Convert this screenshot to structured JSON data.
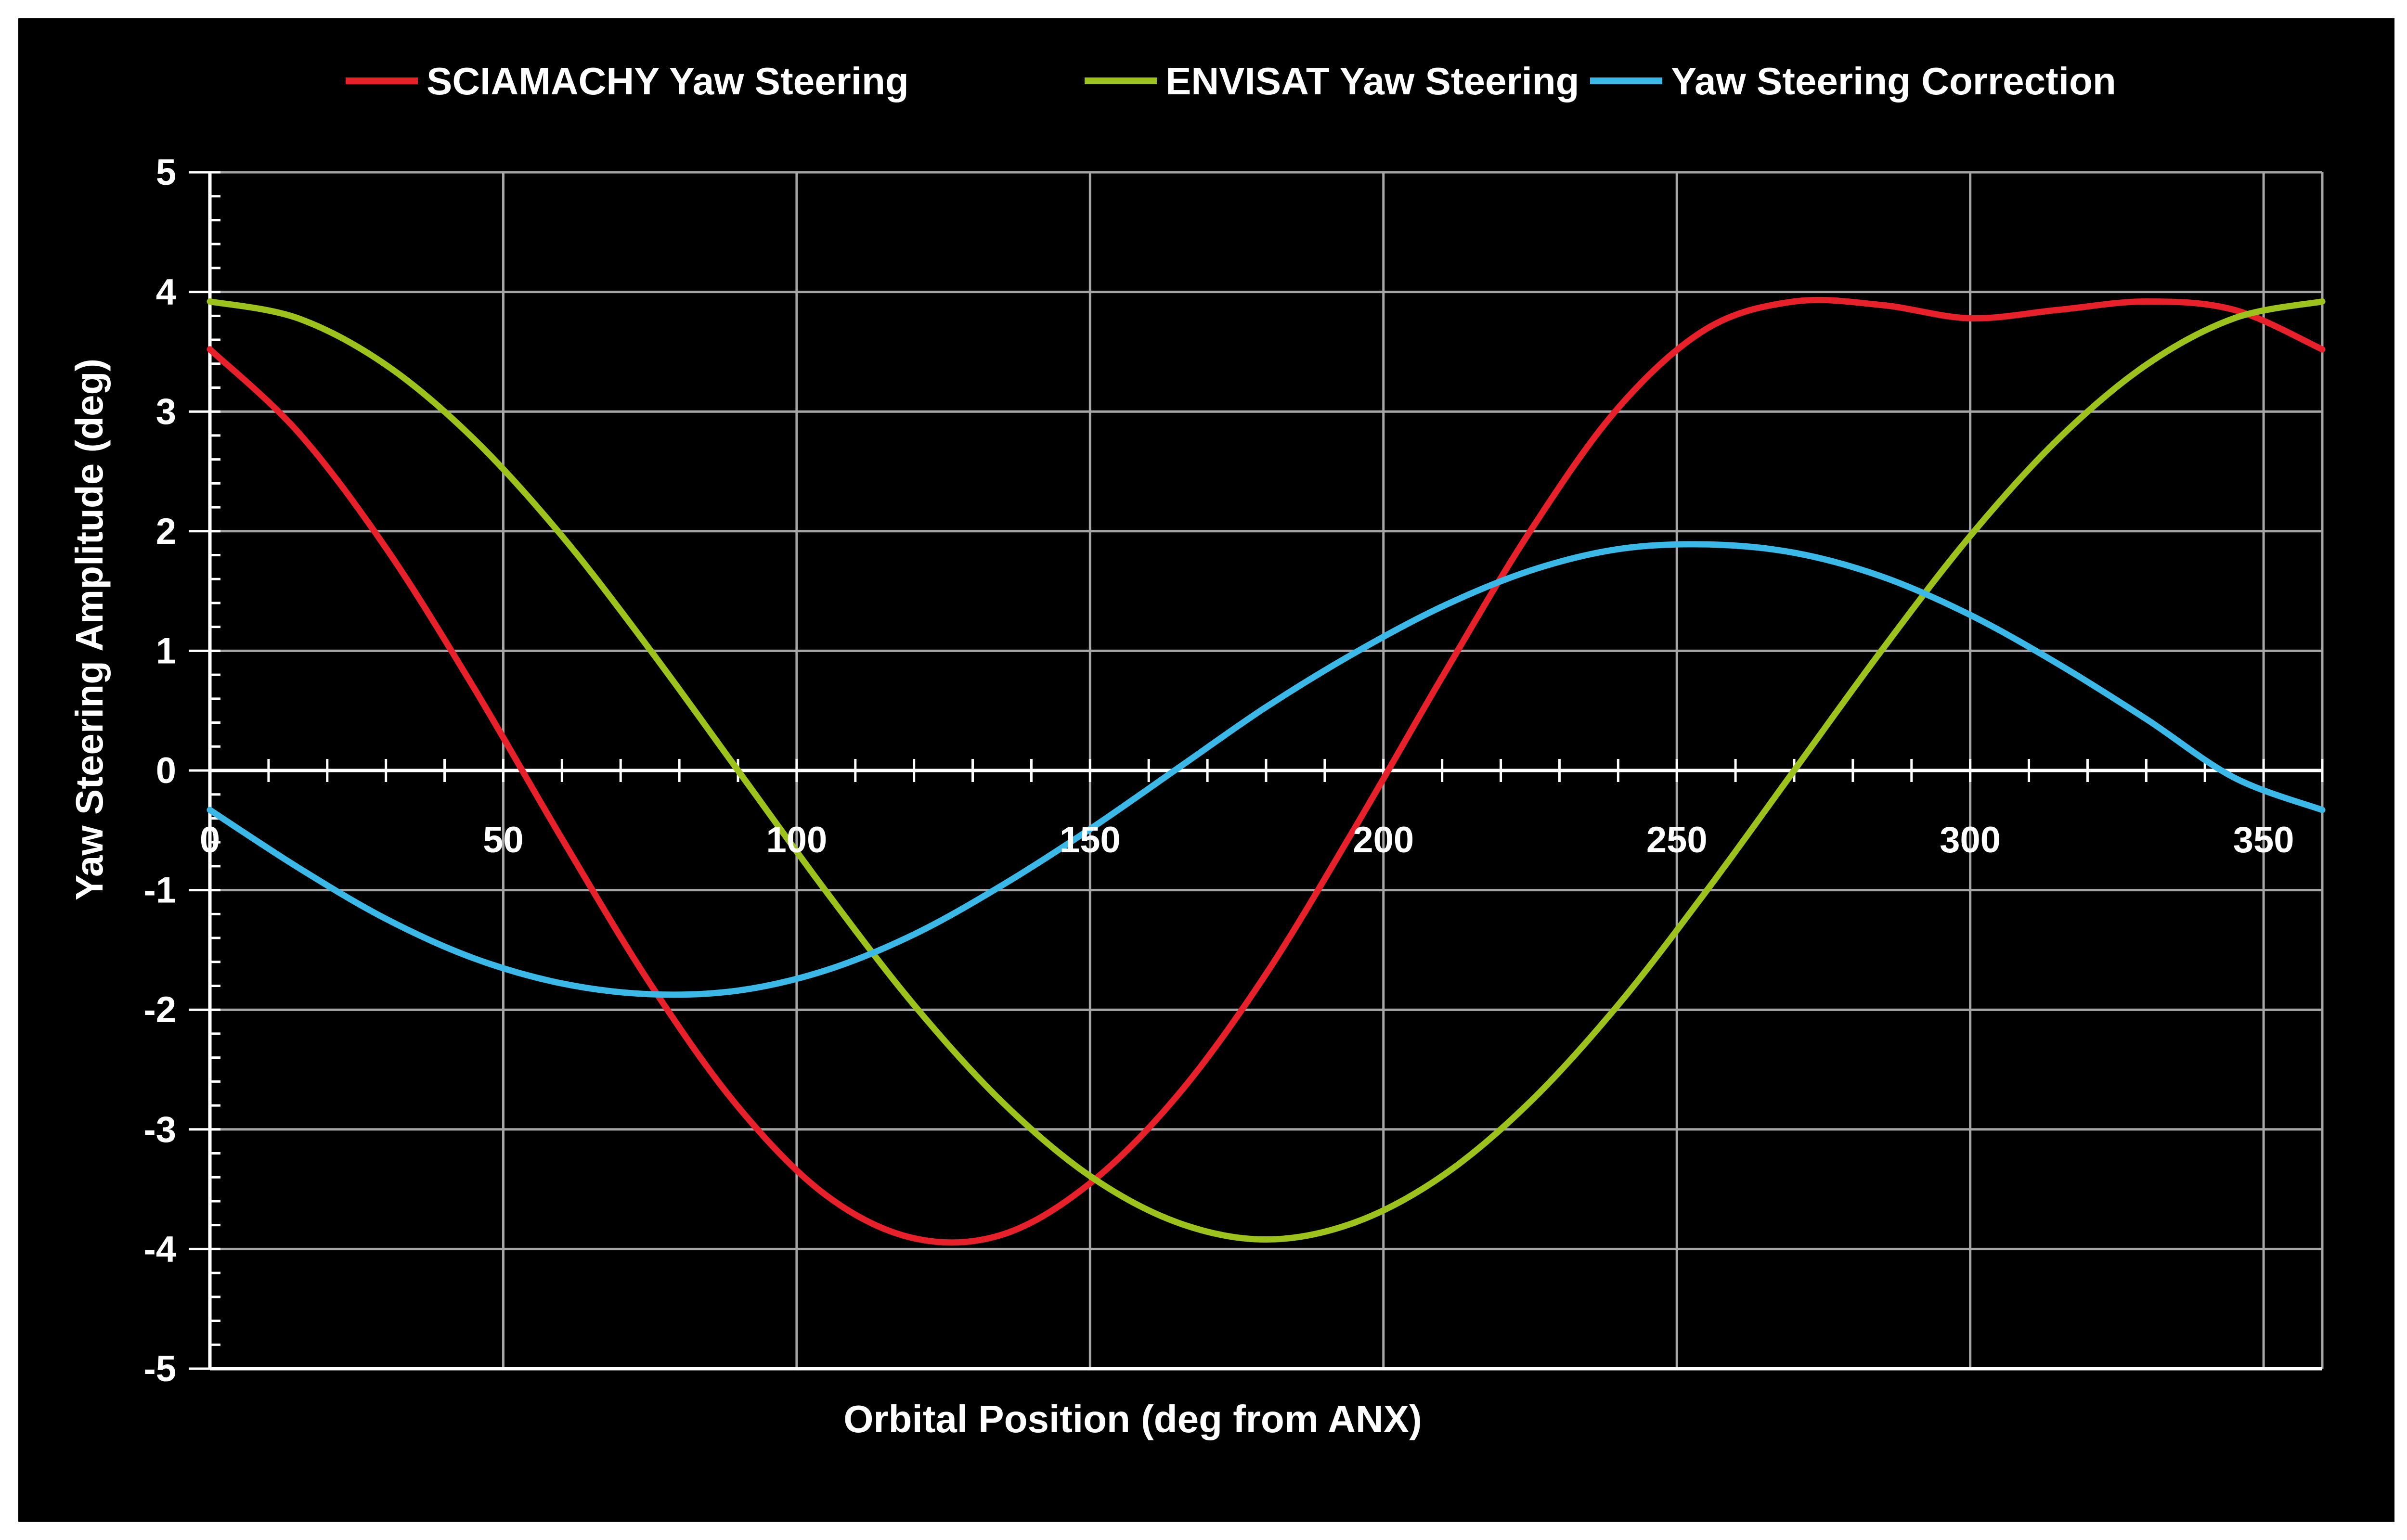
{
  "chart_data": {
    "type": "line",
    "title": "",
    "xlabel": "Orbital Position (deg from ANX)",
    "ylabel": "Yaw Steering Amplitude (deg)",
    "xlim": [
      0,
      360
    ],
    "ylim": [
      -5,
      5
    ],
    "x_ticks": [
      0,
      50,
      100,
      150,
      200,
      250,
      300,
      350
    ],
    "y_ticks": [
      5,
      4,
      3,
      2,
      1,
      0,
      -1,
      -2,
      -3,
      -4,
      -5
    ],
    "grid": true,
    "legend_position": "top",
    "background": "#000000",
    "x": [
      0,
      15,
      30,
      45,
      60,
      75,
      90,
      105,
      120,
      135,
      150,
      165,
      180,
      195,
      210,
      225,
      240,
      255,
      270,
      285,
      300,
      315,
      330,
      345,
      360
    ],
    "series": [
      {
        "name": "SCIAMACHY Yaw Steering",
        "color": "#e8202a",
        "values": [
          3.52,
          2.83,
          1.86,
          0.69,
          -0.57,
          -1.78,
          -2.81,
          -3.55,
          -3.91,
          -3.88,
          -3.45,
          -2.71,
          -1.7,
          -0.49,
          0.78,
          2.0,
          3.03,
          3.69,
          3.92,
          3.89,
          3.78,
          3.85,
          3.92,
          3.85,
          3.52
        ]
      },
      {
        "name": "ENVISAT Yaw Steering",
        "color": "#9cc21b",
        "values": [
          3.92,
          3.78,
          3.39,
          2.77,
          1.96,
          1.01,
          0.0,
          -1.01,
          -1.96,
          -2.77,
          -3.39,
          -3.78,
          -3.92,
          -3.78,
          -3.39,
          -2.77,
          -1.96,
          -1.01,
          0.0,
          1.01,
          1.96,
          2.77,
          3.39,
          3.78,
          3.92
        ]
      },
      {
        "name": "Yaw Steering Correction",
        "color": "#3ab8e8",
        "values": [
          -0.33,
          -0.81,
          -1.24,
          -1.57,
          -1.78,
          -1.87,
          -1.84,
          -1.67,
          -1.37,
          -0.96,
          -0.49,
          0.02,
          0.53,
          0.98,
          1.37,
          1.67,
          1.85,
          1.89,
          1.82,
          1.62,
          1.3,
          0.89,
          0.43,
          -0.06,
          -0.33
        ]
      }
    ]
  }
}
